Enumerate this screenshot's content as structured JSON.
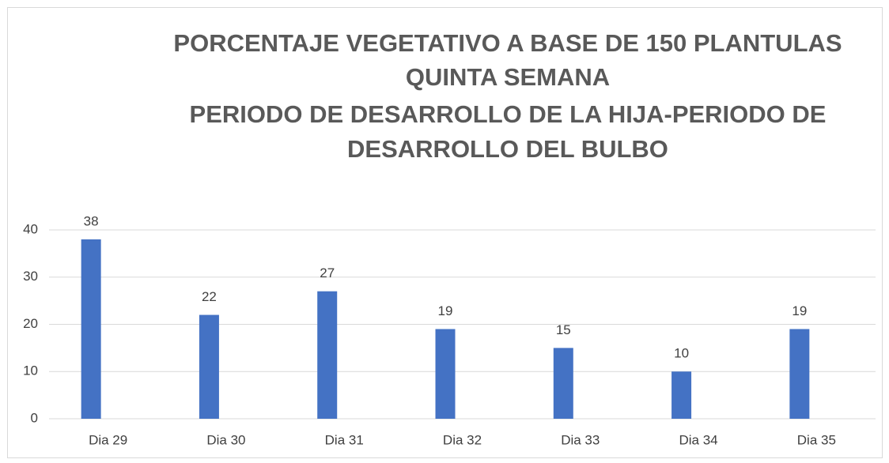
{
  "chart_data": {
    "type": "bar",
    "title": [
      "PORCENTAJE VEGETATIVO A BASE DE 150 PLANTULAS",
      "QUINTA SEMANA",
      "PERIODO DE DESARROLLO DE LA HIJA-PERIODO DE",
      "DESARROLLO DEL BULBO"
    ],
    "categories": [
      "Dia 29",
      "Dia 30",
      "Dia 31",
      "Dia 32",
      "Dia 33",
      "Dia 34",
      "Dia 35"
    ],
    "values": [
      38,
      22,
      27,
      19,
      15,
      10,
      19
    ],
    "color": "#4472c4",
    "ylim": [
      0,
      40
    ],
    "yticks": [
      0,
      10,
      20,
      30,
      40
    ],
    "grid": true
  }
}
